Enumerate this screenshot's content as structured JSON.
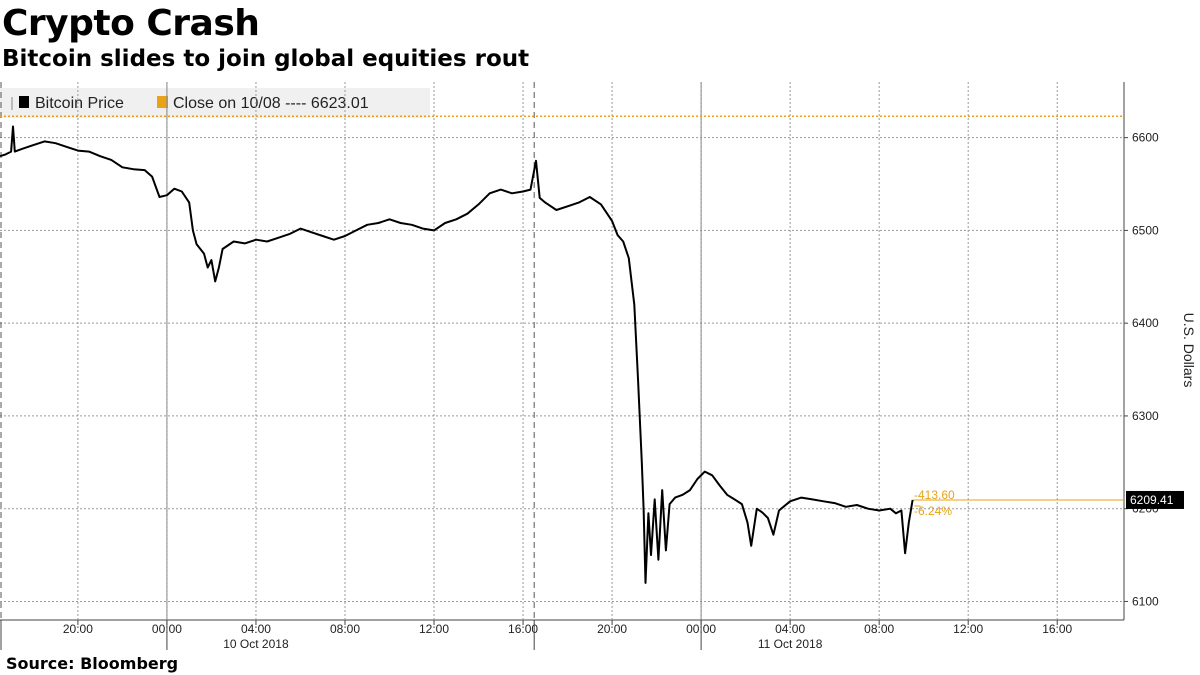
{
  "header": {
    "title": "Crypto Crash",
    "subtitle": "Bitcoin slides to join global equities rout"
  },
  "footer": {
    "source": "Source:  Bloomberg"
  },
  "legend": {
    "series_label": "Bitcoin Price",
    "close_label": "Close on 10/08 ---- 6623.01"
  },
  "annotations": {
    "last_price": "6209.41",
    "change": "-413.60",
    "change_pct": "-6.24%"
  },
  "colors": {
    "series": "#000000",
    "reference": "#e8a317",
    "grid": "#9a9a9a",
    "legend_bg": "#f0f0f0"
  },
  "chart_data": {
    "type": "line",
    "title": "Crypto Crash",
    "subtitle": "Bitcoin slides to join global equities rout",
    "ylabel": "U.S. Dollars",
    "y_axis_side": "right",
    "ylim": [
      6080,
      6660
    ],
    "yticks": [
      6100,
      6200,
      6300,
      6400,
      6500,
      6600
    ],
    "xlim": [
      "2018-10-09T16:30",
      "2018-10-11T19:00"
    ],
    "xticks": [
      {
        "t": "2018-10-09T20:00",
        "label": "20:00"
      },
      {
        "t": "2018-10-10T00:00",
        "label": "00:00"
      },
      {
        "t": "2018-10-10T04:00",
        "label": "04:00"
      },
      {
        "t": "2018-10-10T08:00",
        "label": "08:00"
      },
      {
        "t": "2018-10-10T12:00",
        "label": "12:00"
      },
      {
        "t": "2018-10-10T16:00",
        "label": "16:00"
      },
      {
        "t": "2018-10-10T20:00",
        "label": "20:00"
      },
      {
        "t": "2018-10-11T00:00",
        "label": "00:00"
      },
      {
        "t": "2018-10-11T04:00",
        "label": "04:00"
      },
      {
        "t": "2018-10-11T08:00",
        "label": "08:00"
      },
      {
        "t": "2018-10-11T12:00",
        "label": "12:00"
      },
      {
        "t": "2018-10-11T16:00",
        "label": "16:00"
      }
    ],
    "date_labels": [
      {
        "t": "2018-10-10T04:00",
        "label": "10 Oct 2018"
      },
      {
        "t": "2018-10-11T04:00",
        "label": "11 Oct 2018"
      }
    ],
    "day_boundaries": [
      "2018-10-10T00:00",
      "2018-10-11T00:00"
    ],
    "grid": true,
    "reference_line": {
      "name": "Close on 10/08",
      "value": 6623.01
    },
    "last_value": 6209.41,
    "series": [
      {
        "name": "Bitcoin Price",
        "points": [
          [
            "2018-10-09T16:30",
            6580
          ],
          [
            "2018-10-09T16:45",
            6582
          ],
          [
            "2018-10-09T17:00",
            6585
          ],
          [
            "2018-10-09T17:05",
            6612
          ],
          [
            "2018-10-09T17:10",
            6585
          ],
          [
            "2018-10-09T17:30",
            6588
          ],
          [
            "2018-10-09T18:00",
            6592
          ],
          [
            "2018-10-09T18:30",
            6596
          ],
          [
            "2018-10-09T19:00",
            6594
          ],
          [
            "2018-10-09T19:30",
            6590
          ],
          [
            "2018-10-09T20:00",
            6586
          ],
          [
            "2018-10-09T20:30",
            6585
          ],
          [
            "2018-10-09T21:00",
            6580
          ],
          [
            "2018-10-09T21:30",
            6576
          ],
          [
            "2018-10-09T22:00",
            6568
          ],
          [
            "2018-10-09T22:30",
            6566
          ],
          [
            "2018-10-09T23:00",
            6565
          ],
          [
            "2018-10-09T23:20",
            6558
          ],
          [
            "2018-10-09T23:40",
            6536
          ],
          [
            "2018-10-10T00:00",
            6538
          ],
          [
            "2018-10-10T00:20",
            6545
          ],
          [
            "2018-10-10T00:40",
            6542
          ],
          [
            "2018-10-10T01:00",
            6530
          ],
          [
            "2018-10-10T01:10",
            6500
          ],
          [
            "2018-10-10T01:20",
            6485
          ],
          [
            "2018-10-10T01:40",
            6475
          ],
          [
            "2018-10-10T01:50",
            6460
          ],
          [
            "2018-10-10T02:00",
            6468
          ],
          [
            "2018-10-10T02:10",
            6445
          ],
          [
            "2018-10-10T02:20",
            6460
          ],
          [
            "2018-10-10T02:30",
            6480
          ],
          [
            "2018-10-10T03:00",
            6488
          ],
          [
            "2018-10-10T03:30",
            6486
          ],
          [
            "2018-10-10T04:00",
            6490
          ],
          [
            "2018-10-10T04:30",
            6488
          ],
          [
            "2018-10-10T05:00",
            6492
          ],
          [
            "2018-10-10T05:30",
            6496
          ],
          [
            "2018-10-10T06:00",
            6502
          ],
          [
            "2018-10-10T06:30",
            6498
          ],
          [
            "2018-10-10T07:00",
            6494
          ],
          [
            "2018-10-10T07:30",
            6490
          ],
          [
            "2018-10-10T08:00",
            6494
          ],
          [
            "2018-10-10T08:30",
            6500
          ],
          [
            "2018-10-10T09:00",
            6506
          ],
          [
            "2018-10-10T09:30",
            6508
          ],
          [
            "2018-10-10T10:00",
            6512
          ],
          [
            "2018-10-10T10:30",
            6508
          ],
          [
            "2018-10-10T11:00",
            6506
          ],
          [
            "2018-10-10T11:30",
            6502
          ],
          [
            "2018-10-10T12:00",
            6500
          ],
          [
            "2018-10-10T12:30",
            6508
          ],
          [
            "2018-10-10T13:00",
            6512
          ],
          [
            "2018-10-10T13:30",
            6518
          ],
          [
            "2018-10-10T14:00",
            6528
          ],
          [
            "2018-10-10T14:30",
            6540
          ],
          [
            "2018-10-10T15:00",
            6544
          ],
          [
            "2018-10-10T15:30",
            6540
          ],
          [
            "2018-10-10T16:00",
            6542
          ],
          [
            "2018-10-10T16:20",
            6544
          ],
          [
            "2018-10-10T16:35",
            6575
          ],
          [
            "2018-10-10T16:45",
            6535
          ],
          [
            "2018-10-10T17:00",
            6530
          ],
          [
            "2018-10-10T17:30",
            6522
          ],
          [
            "2018-10-10T18:00",
            6526
          ],
          [
            "2018-10-10T18:30",
            6530
          ],
          [
            "2018-10-10T19:00",
            6536
          ],
          [
            "2018-10-10T19:30",
            6528
          ],
          [
            "2018-10-10T20:00",
            6510
          ],
          [
            "2018-10-10T20:15",
            6495
          ],
          [
            "2018-10-10T20:30",
            6488
          ],
          [
            "2018-10-10T20:45",
            6470
          ],
          [
            "2018-10-10T21:00",
            6420
          ],
          [
            "2018-10-10T21:10",
            6340
          ],
          [
            "2018-10-10T21:20",
            6250
          ],
          [
            "2018-10-10T21:25",
            6200
          ],
          [
            "2018-10-10T21:30",
            6120
          ],
          [
            "2018-10-10T21:38",
            6195
          ],
          [
            "2018-10-10T21:45",
            6150
          ],
          [
            "2018-10-10T21:55",
            6210
          ],
          [
            "2018-10-10T22:05",
            6145
          ],
          [
            "2018-10-10T22:15",
            6220
          ],
          [
            "2018-10-10T22:25",
            6155
          ],
          [
            "2018-10-10T22:35",
            6205
          ],
          [
            "2018-10-10T22:50",
            6212
          ],
          [
            "2018-10-10T23:10",
            6215
          ],
          [
            "2018-10-10T23:30",
            6220
          ],
          [
            "2018-10-10T23:50",
            6232
          ],
          [
            "2018-10-11T00:10",
            6240
          ],
          [
            "2018-10-11T00:30",
            6236
          ],
          [
            "2018-10-11T00:50",
            6225
          ],
          [
            "2018-10-11T01:10",
            6215
          ],
          [
            "2018-10-11T01:30",
            6210
          ],
          [
            "2018-10-11T01:50",
            6205
          ],
          [
            "2018-10-11T02:05",
            6185
          ],
          [
            "2018-10-11T02:15",
            6160
          ],
          [
            "2018-10-11T02:30",
            6200
          ],
          [
            "2018-10-11T02:45",
            6196
          ],
          [
            "2018-10-11T03:00",
            6190
          ],
          [
            "2018-10-11T03:15",
            6172
          ],
          [
            "2018-10-11T03:30",
            6198
          ],
          [
            "2018-10-11T04:00",
            6208
          ],
          [
            "2018-10-11T04:30",
            6212
          ],
          [
            "2018-10-11T05:00",
            6210
          ],
          [
            "2018-10-11T05:30",
            6208
          ],
          [
            "2018-10-11T06:00",
            6206
          ],
          [
            "2018-10-11T06:30",
            6202
          ],
          [
            "2018-10-11T07:00",
            6204
          ],
          [
            "2018-10-11T07:30",
            6200
          ],
          [
            "2018-10-11T08:00",
            6198
          ],
          [
            "2018-10-11T08:30",
            6200
          ],
          [
            "2018-10-11T08:45",
            6195
          ],
          [
            "2018-10-11T09:00",
            6198
          ],
          [
            "2018-10-11T09:10",
            6152
          ],
          [
            "2018-10-11T09:20",
            6185
          ],
          [
            "2018-10-11T09:30",
            6209.41
          ]
        ]
      }
    ]
  }
}
